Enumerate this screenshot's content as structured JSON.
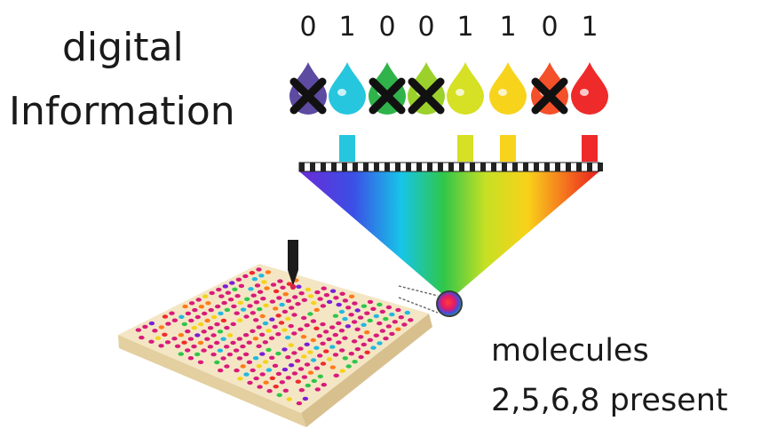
{
  "title": {
    "line1": "digital",
    "line2": "Information"
  },
  "bits": [
    "0",
    "1",
    "0",
    "0",
    "1",
    "1",
    "0",
    "1"
  ],
  "drops": [
    {
      "color": "#5d4aa1",
      "crossed": true
    },
    {
      "color": "#25c6de",
      "crossed": false
    },
    {
      "color": "#2fb34a",
      "crossed": true
    },
    {
      "color": "#9bd12a",
      "crossed": true
    },
    {
      "color": "#d6e024",
      "crossed": false
    },
    {
      "color": "#f7d31c",
      "crossed": false
    },
    {
      "color": "#f4502a",
      "crossed": true
    },
    {
      "color": "#ee2a2a",
      "crossed": false
    }
  ],
  "caption": {
    "line1": "molecules",
    "line2": "2,5,6,8 present"
  },
  "colors": {
    "slab_top": "#f4e6c4",
    "slab_side": "#e3cf9f",
    "probe": "#1b1b1b",
    "probe_tip": "#d4234a"
  }
}
